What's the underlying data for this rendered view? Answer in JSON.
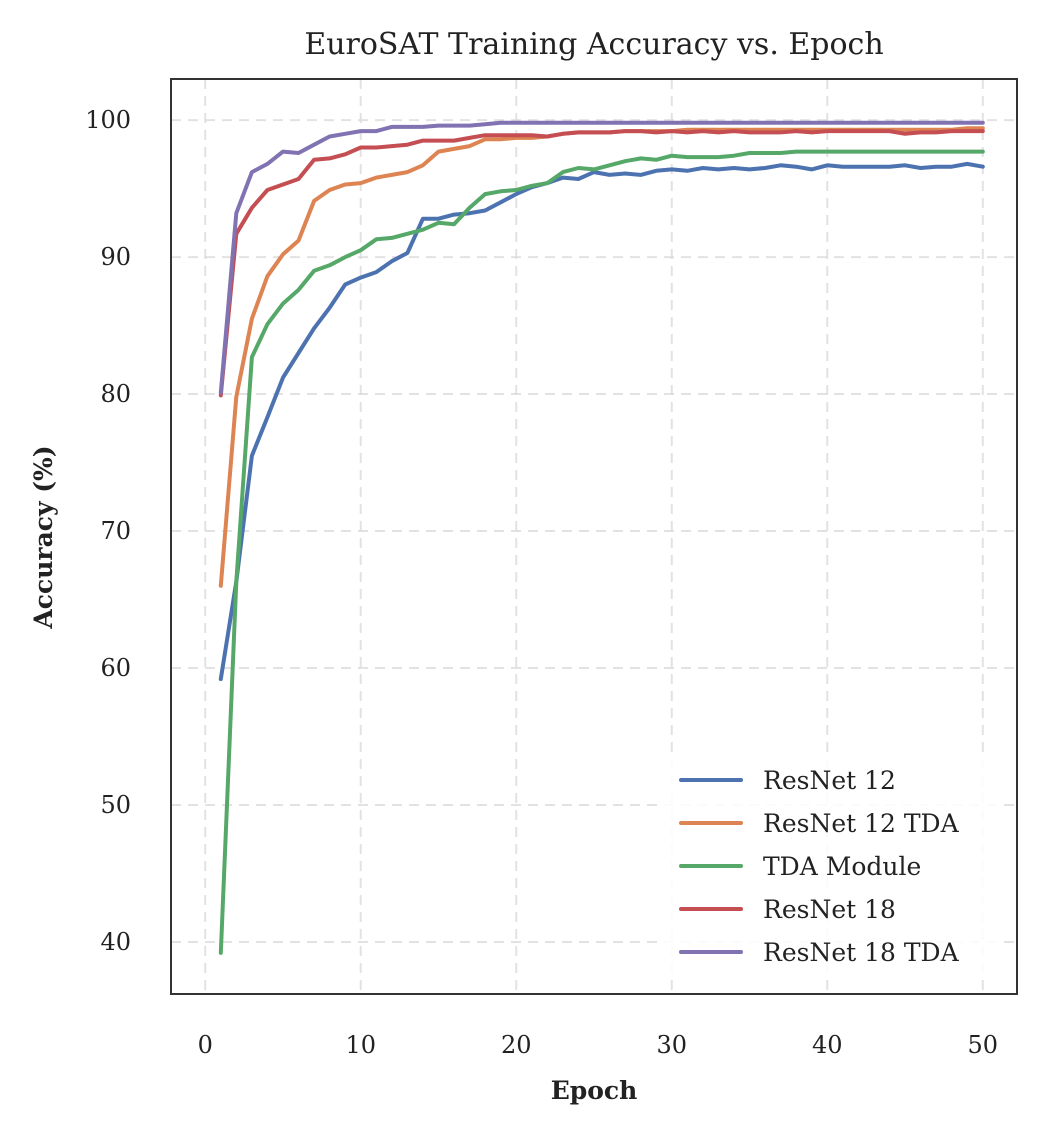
{
  "chart_data": {
    "type": "line",
    "title": "EuroSAT Training Accuracy vs. Epoch",
    "xlabel": "Epoch",
    "ylabel": "Accuracy (%)",
    "xlim": [
      -2.2,
      52.2
    ],
    "ylim": [
      36.2,
      103
    ],
    "xticks": [
      0,
      10,
      20,
      30,
      40,
      50
    ],
    "yticks": [
      40,
      50,
      60,
      70,
      80,
      90,
      100
    ],
    "grid": true,
    "legend": "lower-right",
    "x": [
      1,
      2,
      3,
      4,
      5,
      6,
      7,
      8,
      9,
      10,
      11,
      12,
      13,
      14,
      15,
      16,
      17,
      18,
      19,
      20,
      21,
      22,
      23,
      24,
      25,
      26,
      27,
      28,
      29,
      30,
      31,
      32,
      33,
      34,
      35,
      36,
      37,
      38,
      39,
      40,
      41,
      42,
      43,
      44,
      45,
      46,
      47,
      48,
      49,
      50
    ],
    "series": [
      {
        "name": "ResNet 12",
        "color": "#4c72b0",
        "values": [
          59.2,
          66.3,
          75.5,
          78.3,
          81.2,
          83.0,
          84.8,
          86.3,
          88.0,
          88.5,
          88.9,
          89.7,
          90.3,
          92.8,
          92.8,
          93.1,
          93.2,
          93.4,
          94.0,
          94.6,
          95.1,
          95.4,
          95.8,
          95.7,
          96.2,
          96.0,
          96.1,
          96.0,
          96.3,
          96.4,
          96.3,
          96.5,
          96.4,
          96.5,
          96.4,
          96.5,
          96.7,
          96.6,
          96.4,
          96.7,
          96.6,
          96.6,
          96.6,
          96.6,
          96.7,
          96.5,
          96.6,
          96.6,
          96.8,
          96.6
        ]
      },
      {
        "name": "ResNet 12 TDA",
        "color": "#dd8452",
        "values": [
          66.0,
          79.8,
          85.5,
          88.6,
          90.2,
          91.2,
          94.1,
          94.9,
          95.3,
          95.4,
          95.8,
          96.0,
          96.2,
          96.7,
          97.7,
          97.9,
          98.1,
          98.6,
          98.6,
          98.7,
          98.7,
          98.8,
          99.0,
          99.1,
          99.1,
          99.1,
          99.2,
          99.2,
          99.2,
          99.2,
          99.3,
          99.3,
          99.3,
          99.3,
          99.3,
          99.3,
          99.3,
          99.3,
          99.3,
          99.3,
          99.3,
          99.3,
          99.3,
          99.3,
          99.3,
          99.3,
          99.3,
          99.3,
          99.4,
          99.4
        ]
      },
      {
        "name": "TDA Module",
        "color": "#55a868",
        "values": [
          39.2,
          66.3,
          82.7,
          85.1,
          86.6,
          87.6,
          89.0,
          89.4,
          90.0,
          90.5,
          91.3,
          91.4,
          91.7,
          92.0,
          92.5,
          92.4,
          93.6,
          94.6,
          94.8,
          94.9,
          95.2,
          95.4,
          96.2,
          96.5,
          96.4,
          96.7,
          97.0,
          97.2,
          97.1,
          97.4,
          97.3,
          97.3,
          97.3,
          97.4,
          97.6,
          97.6,
          97.6,
          97.7,
          97.7,
          97.7,
          97.7,
          97.7,
          97.7,
          97.7,
          97.7,
          97.7,
          97.7,
          97.7,
          97.7,
          97.7
        ]
      },
      {
        "name": "ResNet 18",
        "color": "#c44e52",
        "values": [
          79.9,
          91.7,
          93.6,
          94.9,
          95.3,
          95.7,
          97.1,
          97.2,
          97.5,
          98.0,
          98.0,
          98.1,
          98.2,
          98.5,
          98.5,
          98.5,
          98.7,
          98.9,
          98.9,
          98.9,
          98.9,
          98.8,
          99.0,
          99.1,
          99.1,
          99.1,
          99.2,
          99.2,
          99.1,
          99.2,
          99.1,
          99.2,
          99.1,
          99.2,
          99.1,
          99.1,
          99.1,
          99.2,
          99.1,
          99.2,
          99.2,
          99.2,
          99.2,
          99.2,
          99.0,
          99.1,
          99.1,
          99.2,
          99.2,
          99.2
        ]
      },
      {
        "name": "ResNet 18 TDA",
        "color": "#8172b2",
        "values": [
          80.1,
          93.2,
          96.2,
          96.8,
          97.7,
          97.6,
          98.2,
          98.8,
          99.0,
          99.2,
          99.2,
          99.5,
          99.5,
          99.5,
          99.6,
          99.6,
          99.6,
          99.7,
          99.8,
          99.8,
          99.8,
          99.8,
          99.8,
          99.8,
          99.8,
          99.8,
          99.8,
          99.8,
          99.8,
          99.8,
          99.8,
          99.8,
          99.8,
          99.8,
          99.8,
          99.8,
          99.8,
          99.8,
          99.8,
          99.8,
          99.8,
          99.8,
          99.8,
          99.8,
          99.8,
          99.8,
          99.8,
          99.8,
          99.8,
          99.8
        ]
      }
    ]
  }
}
